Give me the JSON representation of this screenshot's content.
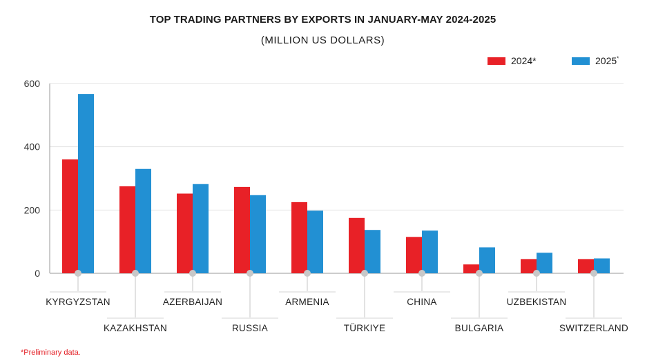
{
  "chart_data": {
    "type": "bar",
    "title": "TOP TRADING  PARTNERS BY EXPORTS IN JANUARY-MAY 2024-2025",
    "subtitle": "(MILLION US DOLLARS)",
    "categories": [
      "KYRGYZSTAN",
      "KAZAKHSTAN",
      "AZERBAIJAN",
      "RUSSIA",
      "ARMENIA",
      "TÜRKIYE",
      "CHINA",
      "BULGARIA",
      "UZBEKISTAN",
      "SWITZERLAND"
    ],
    "series": [
      {
        "name": "2024*",
        "legend_text": "2024",
        "legend_mark": "*",
        "color": "#e82127",
        "values": [
          360,
          275,
          252,
          273,
          225,
          175,
          115,
          28,
          45,
          45
        ]
      },
      {
        "name": "2025*",
        "legend_text": "2025",
        "legend_mark": "*",
        "color": "#2290d3",
        "values": [
          567,
          330,
          282,
          247,
          198,
          137,
          135,
          82,
          65,
          47
        ]
      }
    ],
    "yticks": [
      0,
      200,
      400,
      600
    ],
    "ylim": [
      0,
      600
    ],
    "grid": true,
    "legend_position": "top-right",
    "footnote": "*Preliminary data."
  }
}
